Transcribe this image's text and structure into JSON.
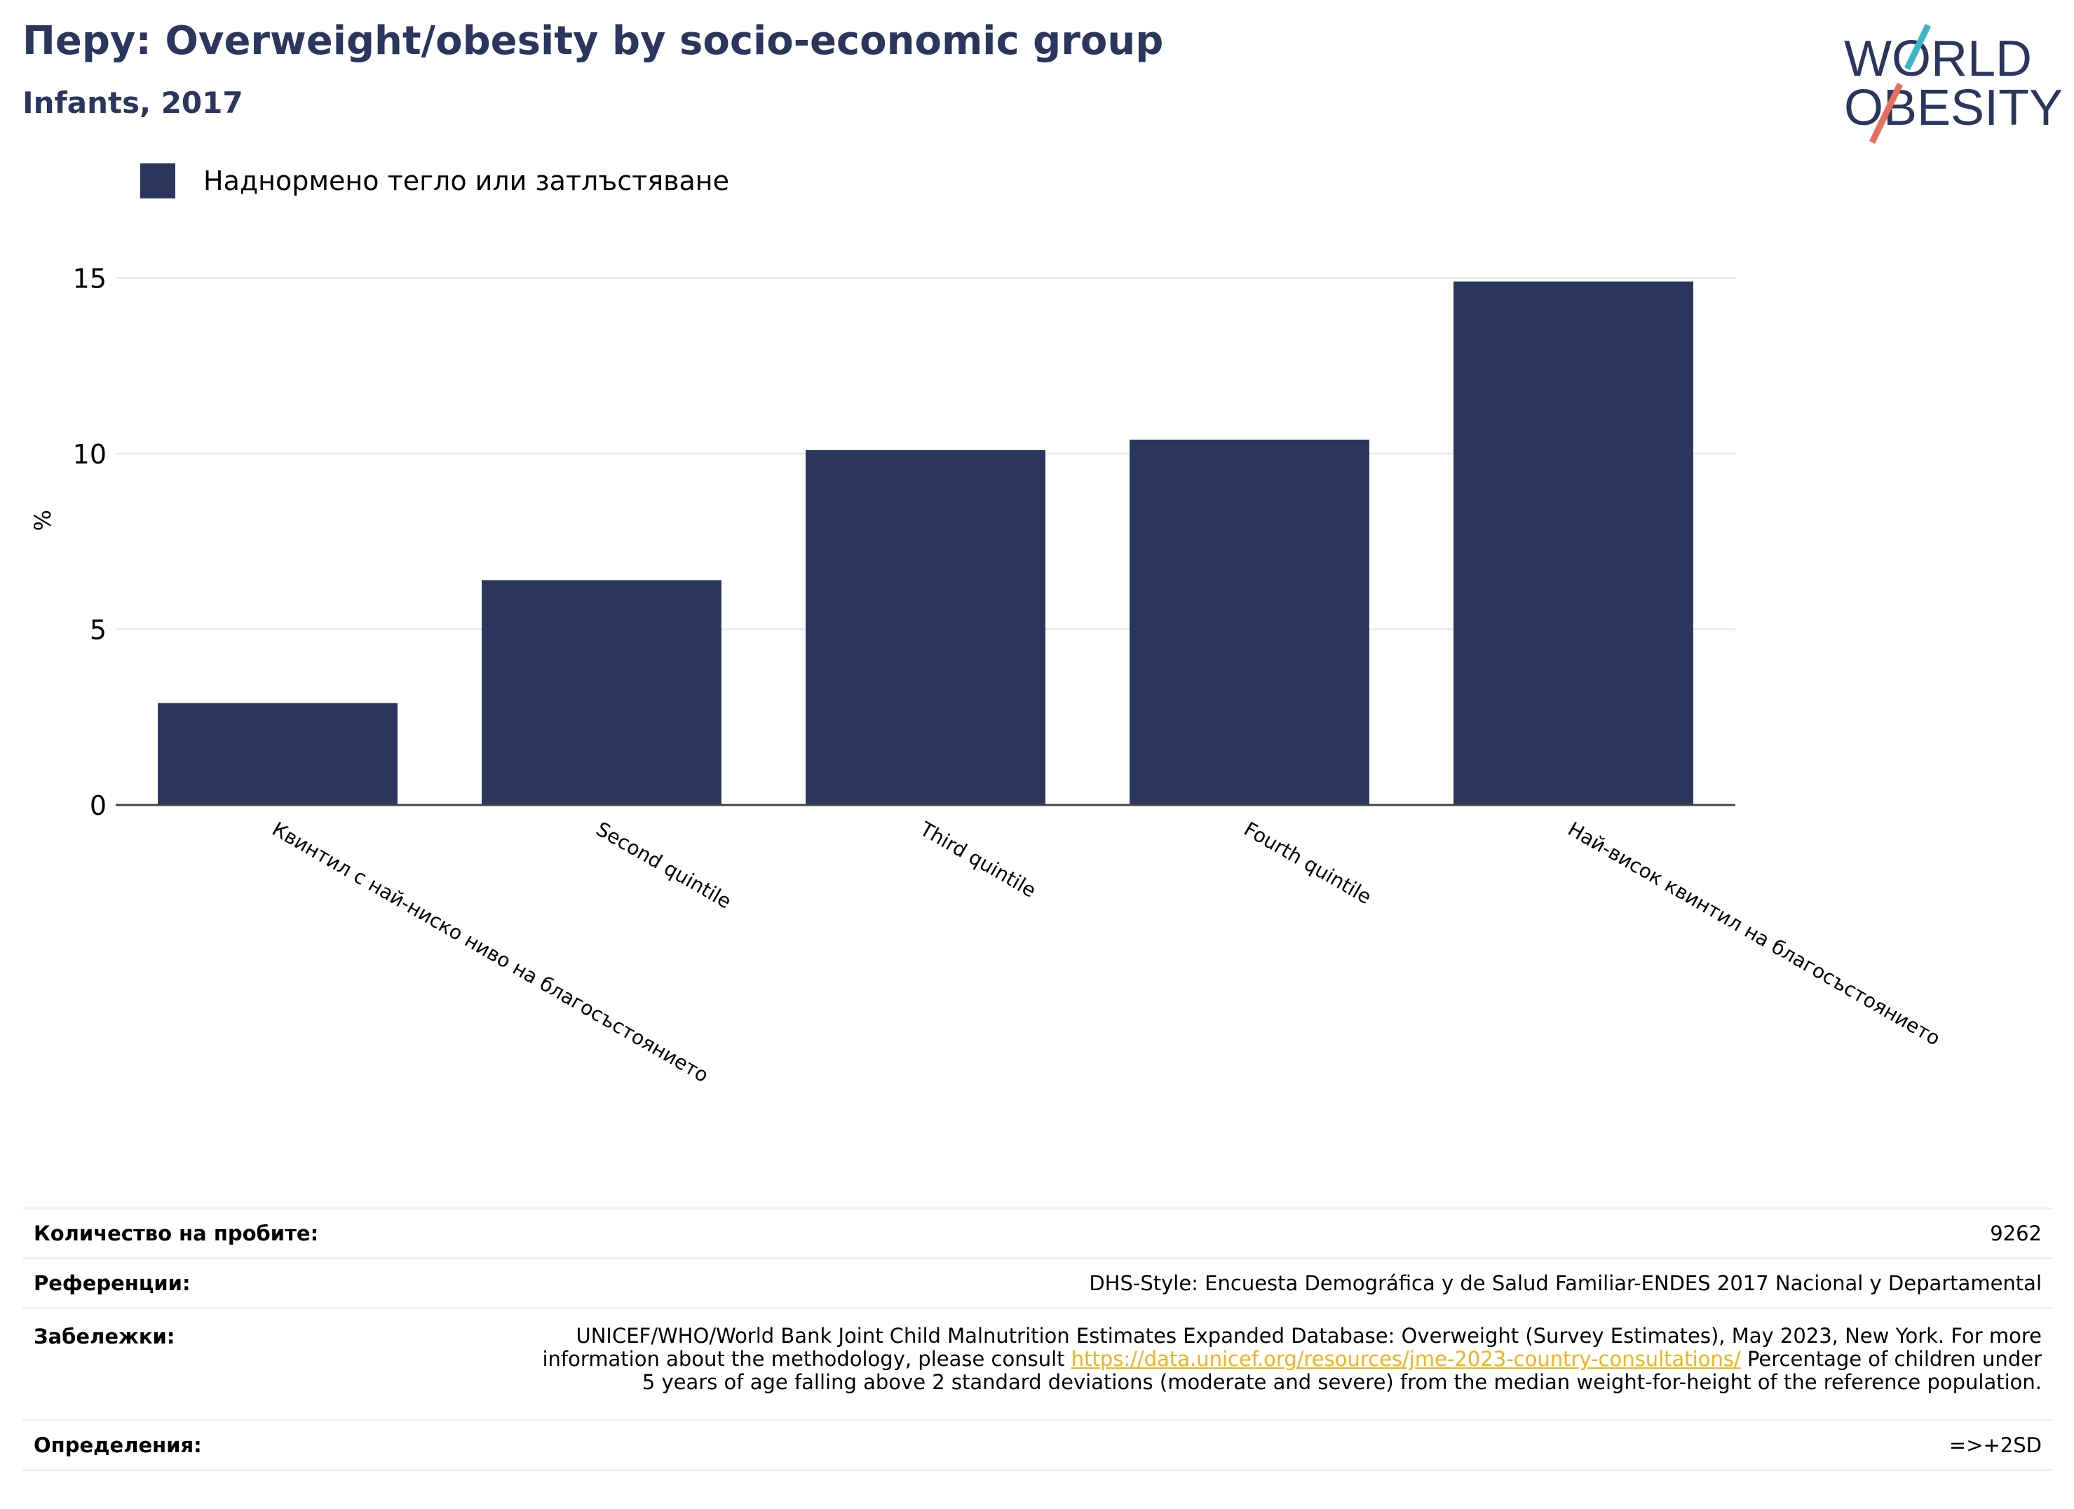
{
  "header": {
    "title": "Перу: Overweight/obesity by socio-economic group",
    "subtitle": "Infants, 2017"
  },
  "logo": {
    "line1": "WORLD",
    "line2": "OBESITY"
  },
  "colors": {
    "bar": "#2b365f",
    "title": "#2b365f",
    "link": "#f0b31a",
    "logo_teal": "#3bb7c4",
    "logo_coral": "#e8705b"
  },
  "chart_data": {
    "type": "bar",
    "categories": [
      "Квинтил с най-ниско ниво на благосъстоянието",
      "Second quintile",
      "Third quintile",
      "Fourth quintile",
      "Най-висок квинтил на благосъстоянието"
    ],
    "series": [
      {
        "name": "Наднормено тегло или затлъстяване",
        "values": [
          2.9,
          6.4,
          10.1,
          10.4,
          14.9
        ]
      }
    ],
    "ylabel": "%",
    "ylim": [
      0,
      16
    ],
    "yticks": [
      0,
      5,
      10,
      15
    ],
    "grid": true,
    "legend": "top-left"
  },
  "footer": {
    "sample_label": "Количество на пробите:",
    "sample_value": "9262",
    "refs_label": "Референции:",
    "refs_value": "DHS-Style: Encuesta Demográfica y de Salud Familiar-ENDES 2017 Nacional y Departamental",
    "notes_label": "Забележки:",
    "notes_before": "UNICEF/WHO/World Bank Joint Child Malnutrition Estimates Expanded Database: Overweight (Survey Estimates), May 2023, New York. For more information about the methodology, please consult",
    "notes_link": "https://data.unicef.org/resources/jme-2023-country-consultations/",
    "notes_after": "Percentage of children under 5 years of age falling above 2 standard deviations (moderate and severe) from the median weight-for-height of the reference population.",
    "defs_label": "Определения:",
    "defs_value": "=>+2SD"
  }
}
